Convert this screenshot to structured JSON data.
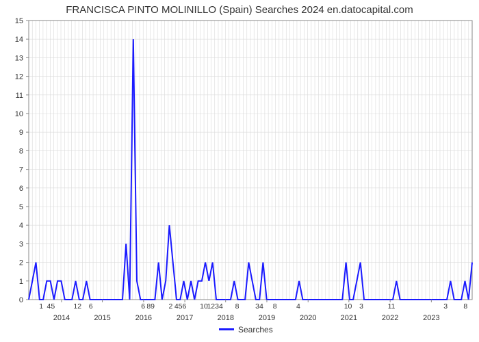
{
  "chart": {
    "type": "line",
    "title": "FRANCISCA PINTO MOLINILLO (Spain) Searches 2024 en.datocapital.com",
    "title_fontsize": 15,
    "background_color": "#ffffff",
    "line_color": "#1a1aff",
    "line_width": 2,
    "grid_color": "#d9d9d9",
    "axis_color": "#888888",
    "tick_color": "#888888",
    "y": {
      "min": 0,
      "max": 15,
      "tick_step": 1,
      "ticks": [
        0,
        1,
        2,
        3,
        4,
        5,
        6,
        7,
        8,
        9,
        10,
        11,
        12,
        13,
        14,
        15
      ]
    },
    "x": {
      "year_labels": [
        "2014",
        "2015",
        "2016",
        "2017",
        "2018",
        "2019",
        "2020",
        "2021",
        "2022",
        "2023"
      ],
      "year_positions": [
        0.074,
        0.166,
        0.259,
        0.352,
        0.444,
        0.537,
        0.63,
        0.722,
        0.815,
        0.908
      ],
      "month_grid_step": 10
    },
    "legend": {
      "label": "Searches"
    },
    "top_ticks": [
      {
        "pos": 0.028,
        "label": "1"
      },
      {
        "pos": 0.05,
        "label": "45"
      },
      {
        "pos": 0.11,
        "label": "12"
      },
      {
        "pos": 0.14,
        "label": "6"
      },
      {
        "pos": 0.258,
        "label": "6"
      },
      {
        "pos": 0.275,
        "label": "89"
      },
      {
        "pos": 0.32,
        "label": "2"
      },
      {
        "pos": 0.342,
        "label": "456"
      },
      {
        "pos": 0.395,
        "label": "10"
      },
      {
        "pos": 0.42,
        "label": "1234"
      },
      {
        "pos": 0.47,
        "label": "8"
      },
      {
        "pos": 0.52,
        "label": "34"
      },
      {
        "pos": 0.555,
        "label": "8"
      },
      {
        "pos": 0.608,
        "label": "4"
      },
      {
        "pos": 0.72,
        "label": "10"
      },
      {
        "pos": 0.75,
        "label": "3"
      },
      {
        "pos": 0.818,
        "label": "11"
      },
      {
        "pos": 0.94,
        "label": "3"
      },
      {
        "pos": 0.985,
        "label": "8"
      }
    ],
    "data": [
      0,
      1,
      2,
      0,
      0,
      1,
      1,
      0,
      1,
      1,
      0,
      0,
      0,
      1,
      0,
      0,
      1,
      0,
      0,
      0,
      0,
      0,
      0,
      0,
      0,
      0,
      0,
      3,
      0,
      14,
      1,
      0,
      0,
      0,
      0,
      0,
      2,
      0,
      1,
      4,
      2,
      0,
      0,
      1,
      0,
      1,
      0,
      1,
      1,
      2,
      1,
      2,
      0,
      0,
      0,
      0,
      0,
      1,
      0,
      0,
      0,
      2,
      1,
      0,
      0,
      2,
      0,
      0,
      0,
      0,
      0,
      0,
      0,
      0,
      0,
      1,
      0,
      0,
      0,
      0,
      0,
      0,
      0,
      0,
      0,
      0,
      0,
      0,
      2,
      0,
      0,
      1,
      2,
      0,
      0,
      0,
      0,
      0,
      0,
      0,
      0,
      0,
      1,
      0,
      0,
      0,
      0,
      0,
      0,
      0,
      0,
      0,
      0,
      0,
      0,
      0,
      0,
      1,
      0,
      0,
      0,
      1,
      0,
      2
    ]
  }
}
